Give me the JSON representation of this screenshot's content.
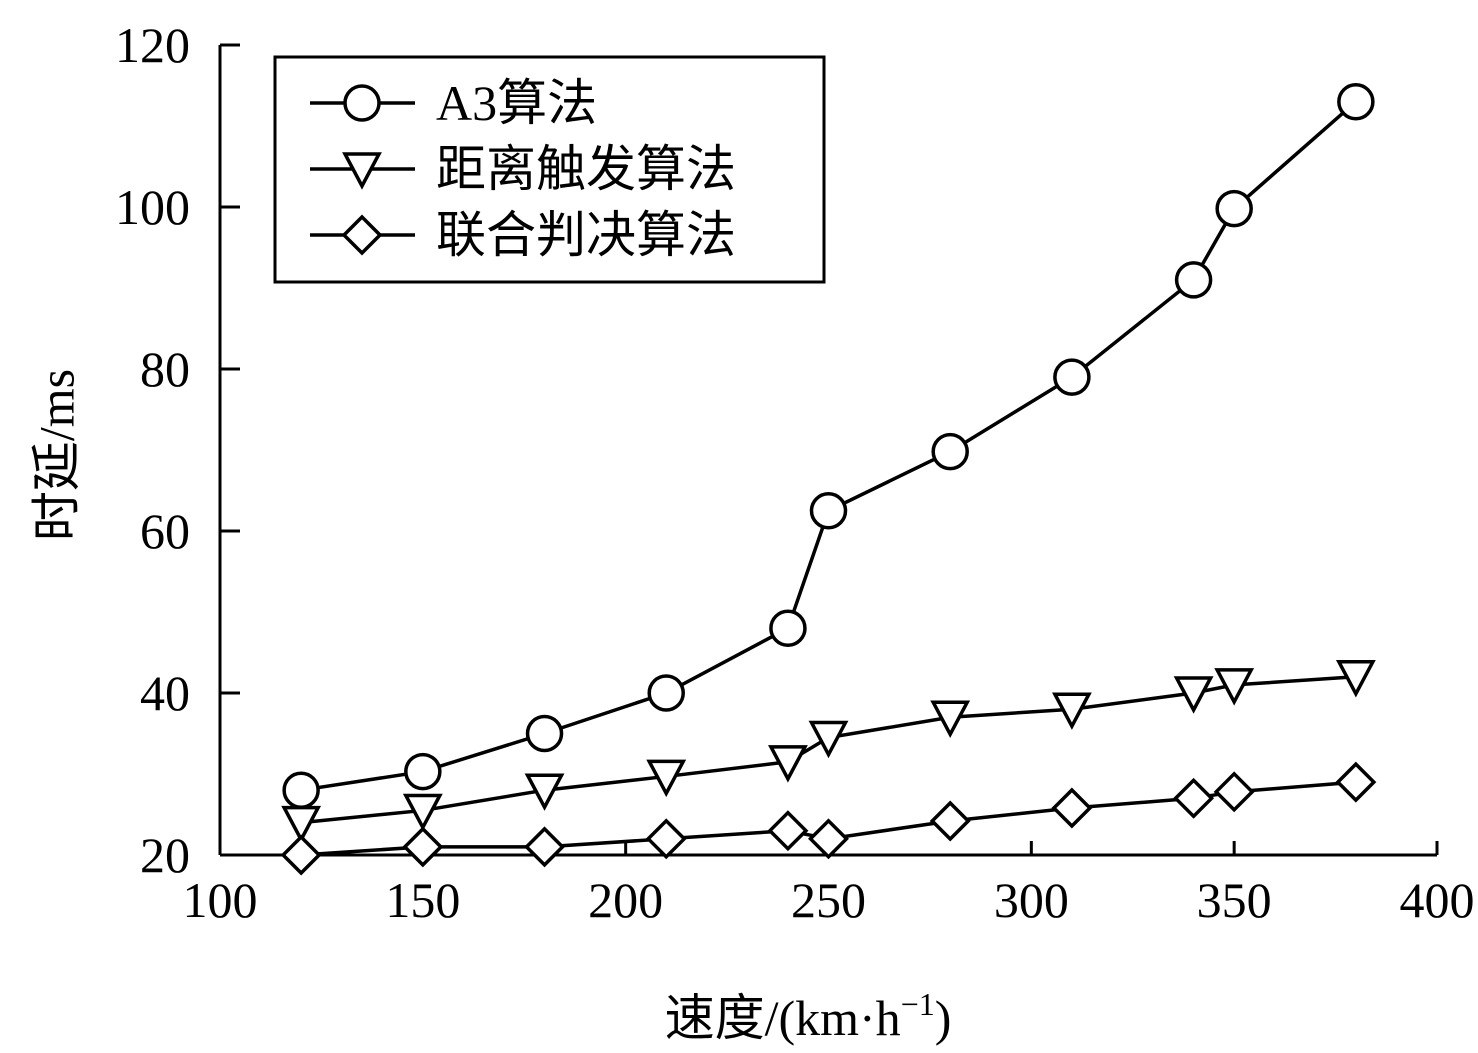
{
  "chart_data": {
    "type": "line",
    "xlabel": "速度/(km·h",
    "xlabel_sup": "−1",
    "xlabel_close": ")",
    "ylabel": "时延/ms",
    "xlim": [
      100,
      400
    ],
    "ylim": [
      20,
      120
    ],
    "xticks": [
      100,
      150,
      200,
      250,
      300,
      350,
      400
    ],
    "yticks": [
      20,
      40,
      60,
      80,
      100,
      120
    ],
    "grid": false,
    "legend_position": "top-left",
    "series": [
      {
        "name": "A3算法",
        "marker": "circle",
        "x": [
          120,
          150,
          180,
          210,
          240,
          250,
          280,
          310,
          340,
          350,
          380
        ],
        "y": [
          28,
          30.3,
          35,
          40,
          48,
          62.5,
          69.8,
          79,
          91,
          99.8,
          113
        ]
      },
      {
        "name": "距离触发算法",
        "marker": "triangle-down",
        "x": [
          120,
          150,
          180,
          210,
          240,
          250,
          280,
          310,
          340,
          350,
          380
        ],
        "y": [
          24,
          25.5,
          28,
          29.7,
          31.5,
          34.5,
          37,
          38,
          40,
          41,
          42
        ]
      },
      {
        "name": "联合判决算法",
        "marker": "diamond",
        "x": [
          120,
          150,
          180,
          210,
          240,
          250,
          280,
          310,
          340,
          350,
          380
        ],
        "y": [
          20,
          21,
          21,
          22,
          23,
          22,
          24.2,
          25.8,
          27,
          27.8,
          29
        ]
      }
    ]
  }
}
